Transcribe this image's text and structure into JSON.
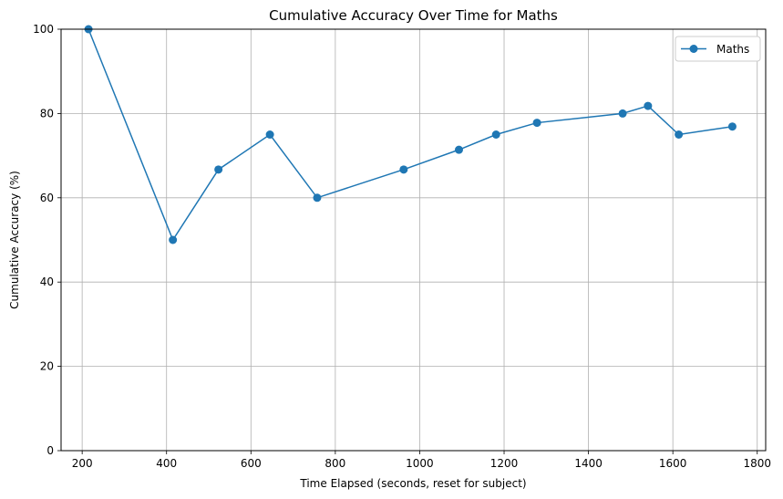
{
  "chart_data": {
    "type": "line",
    "title": "Cumulative Accuracy Over Time for Maths",
    "xlabel": "Time Elapsed (seconds, reset for subject)",
    "ylabel": "Cumulative Accuracy (%)",
    "xlim": [
      150,
      1820
    ],
    "ylim": [
      0,
      100
    ],
    "xticks": [
      200,
      400,
      600,
      800,
      1000,
      1200,
      1400,
      1600,
      1800
    ],
    "yticks": [
      0,
      20,
      40,
      60,
      80,
      100
    ],
    "grid": true,
    "legend_position": "top-right",
    "series": [
      {
        "name": "Maths",
        "color": "#1f77b4",
        "x": [
          215,
          415,
          523,
          645,
          757,
          962,
          1093,
          1181,
          1278,
          1481,
          1541,
          1614,
          1741
        ],
        "y": [
          100,
          50,
          66.7,
          75,
          60,
          66.7,
          71.4,
          75,
          77.8,
          80,
          81.8,
          75,
          76.9
        ]
      }
    ]
  }
}
